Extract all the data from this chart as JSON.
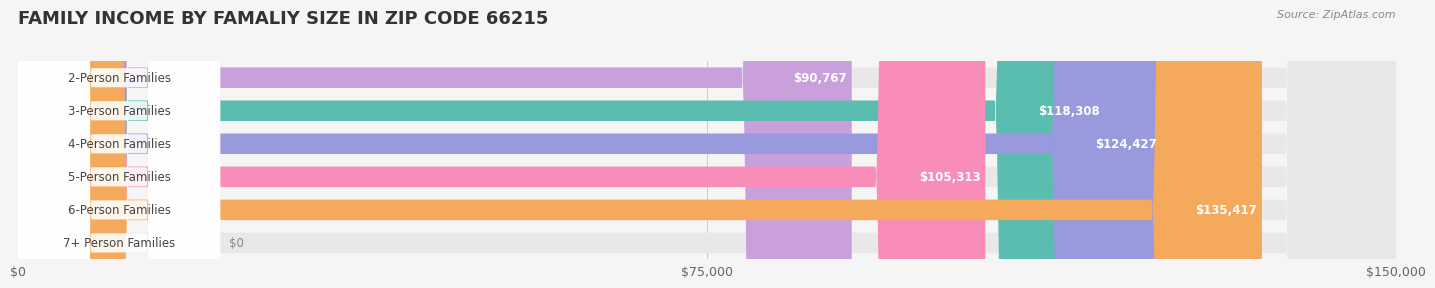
{
  "title": "FAMILY INCOME BY FAMALIY SIZE IN ZIP CODE 66215",
  "source": "Source: ZipAtlas.com",
  "categories": [
    "2-Person Families",
    "3-Person Families",
    "4-Person Families",
    "5-Person Families",
    "6-Person Families",
    "7+ Person Families"
  ],
  "values": [
    90767,
    118308,
    124427,
    105313,
    135417,
    0
  ],
  "bar_colors": [
    "#c9a0dc",
    "#5bbcb0",
    "#9999dd",
    "#f78db8",
    "#f5a95c",
    "#f4b8c0"
  ],
  "label_colors": [
    "white",
    "white",
    "white",
    "white",
    "white",
    "white"
  ],
  "value_labels": [
    "$90,767",
    "$118,308",
    "$124,427",
    "$105,313",
    "$135,417",
    "$0"
  ],
  "xlim": [
    0,
    150000
  ],
  "xticks": [
    0,
    75000,
    150000
  ],
  "xtick_labels": [
    "$0",
    "$75,000",
    "$150,000"
  ],
  "bg_color": "#f5f5f5",
  "bar_bg_color": "#e8e8e8",
  "title_fontsize": 13,
  "label_fontsize": 8.5,
  "value_fontsize": 8.5,
  "source_fontsize": 8,
  "bar_height": 0.62
}
